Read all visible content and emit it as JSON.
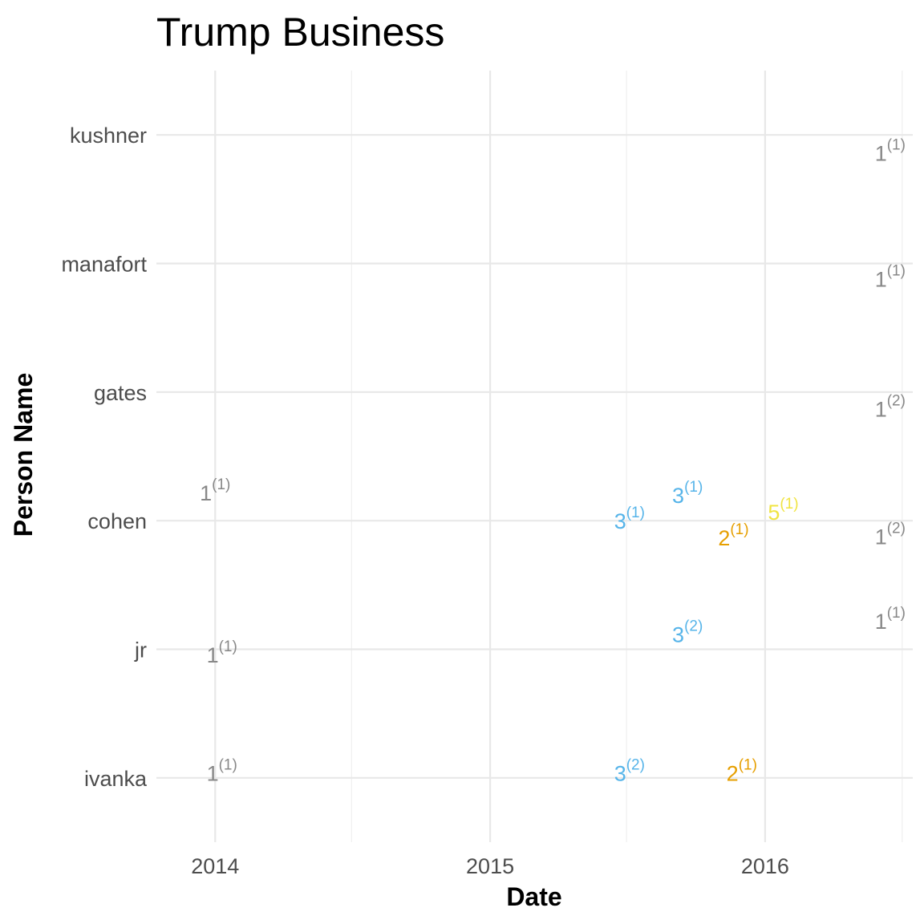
{
  "chart_data": {
    "type": "scatter",
    "title": "Trump Business",
    "xlabel": "Date",
    "ylabel": "Person Name",
    "grid": true,
    "legend": "none",
    "x_axis": {
      "type": "date",
      "range": [
        "2013-10-15",
        "2016-07-15"
      ],
      "ticks": [
        "2014",
        "2015",
        "2016"
      ],
      "tick_dates": [
        "2014-01-01",
        "2015-01-01",
        "2016-01-01"
      ],
      "minor_ticks": [
        "2014-07-01",
        "2015-07-01",
        "2016-07-01"
      ]
    },
    "y_axis": {
      "type": "categorical",
      "categories": [
        "ivanka",
        "jr",
        "cohen",
        "gates",
        "manafort",
        "kushner"
      ]
    },
    "colors": {
      "1": "#888888",
      "2": "#e69f00",
      "3": "#56b4e9",
      "5": "#f0e442"
    },
    "points": [
      {
        "person": "kushner",
        "date": "2016-06-15",
        "value": "1",
        "count": "1",
        "offset": 0.14
      },
      {
        "person": "manafort",
        "date": "2016-06-15",
        "value": "1",
        "count": "1",
        "offset": 0.12
      },
      {
        "person": "gates",
        "date": "2016-06-15",
        "value": "1",
        "count": "2",
        "offset": 0.13
      },
      {
        "person": "cohen",
        "date": "2016-06-15",
        "value": "1",
        "count": "2",
        "offset": 0.12
      },
      {
        "person": "cohen",
        "date": "2014-01-01",
        "value": "1",
        "count": "1",
        "offset": -0.22
      },
      {
        "person": "cohen",
        "date": "2015-07-05",
        "value": "3",
        "count": "1",
        "offset": 0.0
      },
      {
        "person": "cohen",
        "date": "2015-09-20",
        "value": "3",
        "count": "1",
        "offset": -0.2
      },
      {
        "person": "cohen",
        "date": "2015-11-20",
        "value": "2",
        "count": "1",
        "offset": 0.13
      },
      {
        "person": "cohen",
        "date": "2016-01-25",
        "value": "5",
        "count": "1",
        "offset": -0.07
      },
      {
        "person": "jr",
        "date": "2014-01-10",
        "value": "1",
        "count": "1",
        "offset": 0.04
      },
      {
        "person": "jr",
        "date": "2015-09-20",
        "value": "3",
        "count": "2",
        "offset": -0.12
      },
      {
        "person": "jr",
        "date": "2016-06-15",
        "value": "1",
        "count": "1",
        "offset": -0.22
      },
      {
        "person": "ivanka",
        "date": "2014-01-10",
        "value": "1",
        "count": "1",
        "offset": -0.04
      },
      {
        "person": "ivanka",
        "date": "2015-07-05",
        "value": "3",
        "count": "2",
        "offset": -0.04
      },
      {
        "person": "ivanka",
        "date": "2015-12-01",
        "value": "2",
        "count": "1",
        "offset": -0.04
      }
    ]
  }
}
